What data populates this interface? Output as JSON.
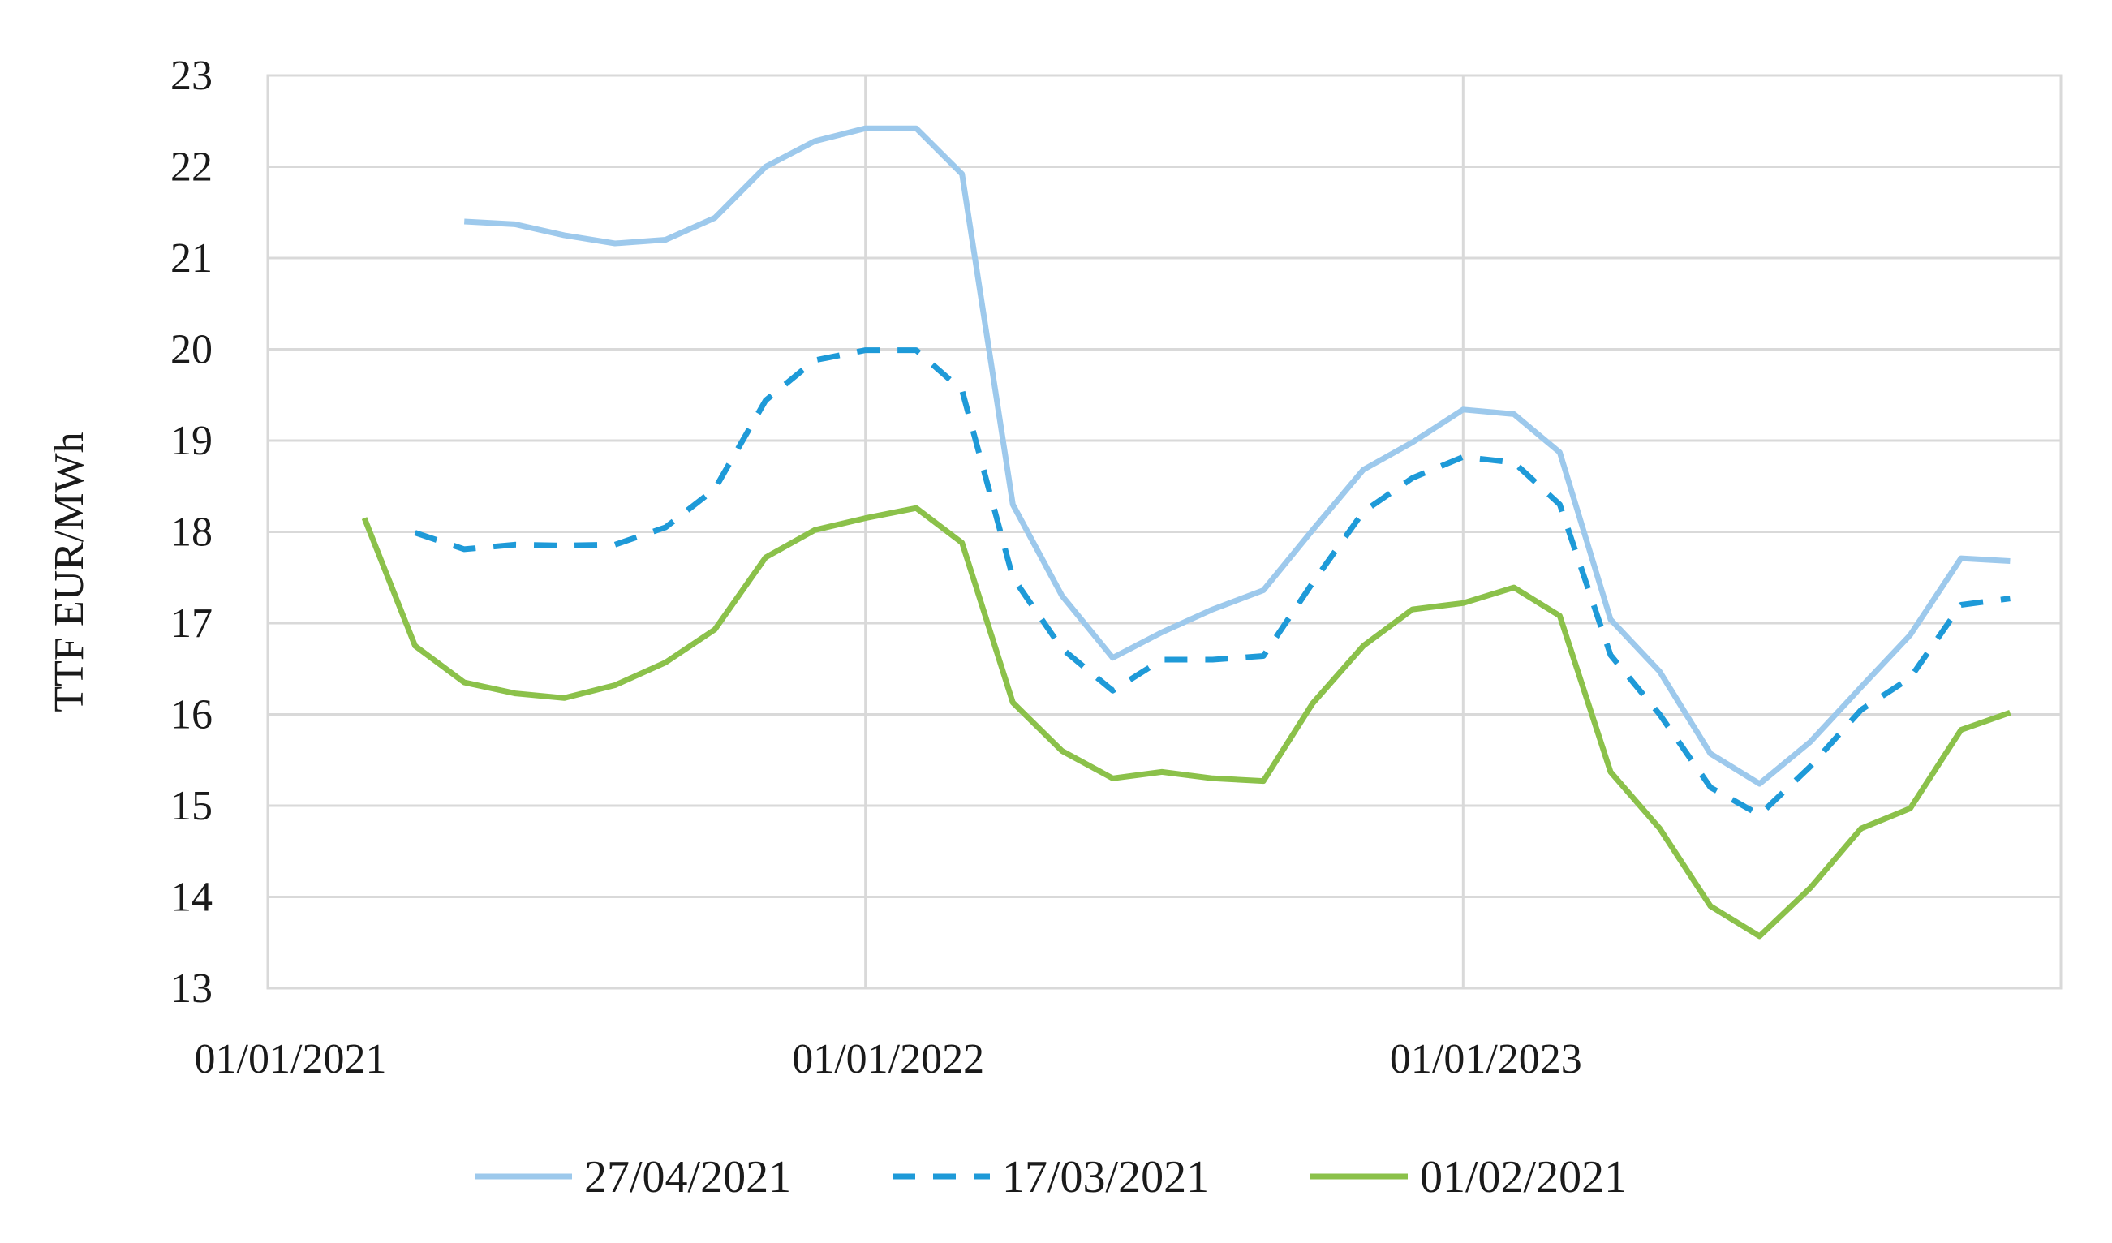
{
  "chart_data": {
    "type": "line",
    "title": "",
    "xlabel": "",
    "ylabel": "TTF EUR/MWh",
    "ylim": [
      13,
      23
    ],
    "yticks": [
      "13",
      "14",
      "15",
      "16",
      "17",
      "18",
      "19",
      "20",
      "21",
      "22",
      "23"
    ],
    "xlim": [
      "2021-01-01",
      "2024-01-01"
    ],
    "xticks": [
      {
        "date": "2021-01-01",
        "label": "01/01/2021"
      },
      {
        "date": "2022-01-01",
        "label": "01/01/2022"
      },
      {
        "date": "2023-01-01",
        "label": "01/01/2023"
      }
    ],
    "grid": true,
    "legend_position": "bottom",
    "series": [
      {
        "name": "27/04/2021",
        "color": "#9dc9ec",
        "dash": "solid",
        "points": [
          [
            "2021-05-01",
            21.4
          ],
          [
            "2021-06-01",
            21.37
          ],
          [
            "2021-07-01",
            21.25
          ],
          [
            "2021-08-01",
            21.16
          ],
          [
            "2021-09-01",
            21.2
          ],
          [
            "2021-10-01",
            21.44
          ],
          [
            "2021-11-01",
            22.0
          ],
          [
            "2021-12-01",
            22.28
          ],
          [
            "2022-01-01",
            22.42
          ],
          [
            "2022-02-01",
            22.42
          ],
          [
            "2022-03-01",
            21.92
          ],
          [
            "2022-04-01",
            18.3
          ],
          [
            "2022-05-01",
            17.3
          ],
          [
            "2022-06-01",
            16.62
          ],
          [
            "2022-07-01",
            16.9
          ],
          [
            "2022-08-01",
            17.15
          ],
          [
            "2022-09-01",
            17.36
          ],
          [
            "2022-10-01",
            18.02
          ],
          [
            "2022-11-01",
            18.68
          ],
          [
            "2022-12-01",
            18.98
          ],
          [
            "2023-01-01",
            19.34
          ],
          [
            "2023-02-01",
            19.29
          ],
          [
            "2023-03-01",
            18.87
          ],
          [
            "2023-04-01",
            17.04
          ],
          [
            "2023-05-01",
            16.47
          ],
          [
            "2023-06-01",
            15.57
          ],
          [
            "2023-07-01",
            15.24
          ],
          [
            "2023-08-01",
            15.7
          ],
          [
            "2023-09-01",
            16.3
          ],
          [
            "2023-10-01",
            16.87
          ],
          [
            "2023-11-01",
            17.71
          ],
          [
            "2023-12-01",
            17.68
          ]
        ]
      },
      {
        "name": "17/03/2021",
        "color": "#1e9ad8",
        "dash": "dashed",
        "points": [
          [
            "2021-04-01",
            17.99
          ],
          [
            "2021-05-01",
            17.81
          ],
          [
            "2021-06-01",
            17.86
          ],
          [
            "2021-07-01",
            17.85
          ],
          [
            "2021-08-01",
            17.86
          ],
          [
            "2021-09-01",
            18.05
          ],
          [
            "2021-10-01",
            18.47
          ],
          [
            "2021-11-01",
            19.44
          ],
          [
            "2021-12-01",
            19.88
          ],
          [
            "2022-01-01",
            19.99
          ],
          [
            "2022-02-01",
            19.99
          ],
          [
            "2022-03-01",
            19.55
          ],
          [
            "2022-04-01",
            17.5
          ],
          [
            "2022-05-01",
            16.72
          ],
          [
            "2022-06-01",
            16.26
          ],
          [
            "2022-07-01",
            16.6
          ],
          [
            "2022-08-01",
            16.6
          ],
          [
            "2022-09-01",
            16.64
          ],
          [
            "2022-10-01",
            17.44
          ],
          [
            "2022-11-01",
            18.22
          ],
          [
            "2022-12-01",
            18.59
          ],
          [
            "2023-01-01",
            18.82
          ],
          [
            "2023-02-01",
            18.76
          ],
          [
            "2023-03-01",
            18.3
          ],
          [
            "2023-04-01",
            16.65
          ],
          [
            "2023-05-01",
            16.0
          ],
          [
            "2023-06-01",
            15.2
          ],
          [
            "2023-07-01",
            14.9
          ],
          [
            "2023-08-01",
            15.43
          ],
          [
            "2023-09-01",
            16.05
          ],
          [
            "2023-10-01",
            16.4
          ],
          [
            "2023-11-01",
            17.2
          ],
          [
            "2023-12-01",
            17.27
          ]
        ]
      },
      {
        "name": "01/02/2021",
        "color": "#8bc14a",
        "dash": "solid",
        "points": [
          [
            "2021-03-01",
            18.15
          ],
          [
            "2021-04-01",
            16.75
          ],
          [
            "2021-05-01",
            16.35
          ],
          [
            "2021-06-01",
            16.23
          ],
          [
            "2021-07-01",
            16.18
          ],
          [
            "2021-08-01",
            16.32
          ],
          [
            "2021-09-01",
            16.57
          ],
          [
            "2021-10-01",
            16.93
          ],
          [
            "2021-11-01",
            17.72
          ],
          [
            "2021-12-01",
            18.02
          ],
          [
            "2022-01-01",
            18.15
          ],
          [
            "2022-02-01",
            18.26
          ],
          [
            "2022-03-01",
            17.88
          ],
          [
            "2022-04-01",
            16.13
          ],
          [
            "2022-05-01",
            15.6
          ],
          [
            "2022-06-01",
            15.3
          ],
          [
            "2022-07-01",
            15.37
          ],
          [
            "2022-08-01",
            15.3
          ],
          [
            "2022-09-01",
            15.27
          ],
          [
            "2022-10-01",
            16.12
          ],
          [
            "2022-11-01",
            16.75
          ],
          [
            "2022-12-01",
            17.15
          ],
          [
            "2023-01-01",
            17.22
          ],
          [
            "2023-02-01",
            17.39
          ],
          [
            "2023-03-01",
            17.08
          ],
          [
            "2023-04-01",
            15.37
          ],
          [
            "2023-05-01",
            14.75
          ],
          [
            "2023-06-01",
            13.9
          ],
          [
            "2023-07-01",
            13.57
          ],
          [
            "2023-08-01",
            14.1
          ],
          [
            "2023-09-01",
            14.75
          ],
          [
            "2023-10-01",
            14.97
          ],
          [
            "2023-11-01",
            15.83
          ],
          [
            "2023-12-01",
            16.02
          ]
        ]
      }
    ]
  }
}
